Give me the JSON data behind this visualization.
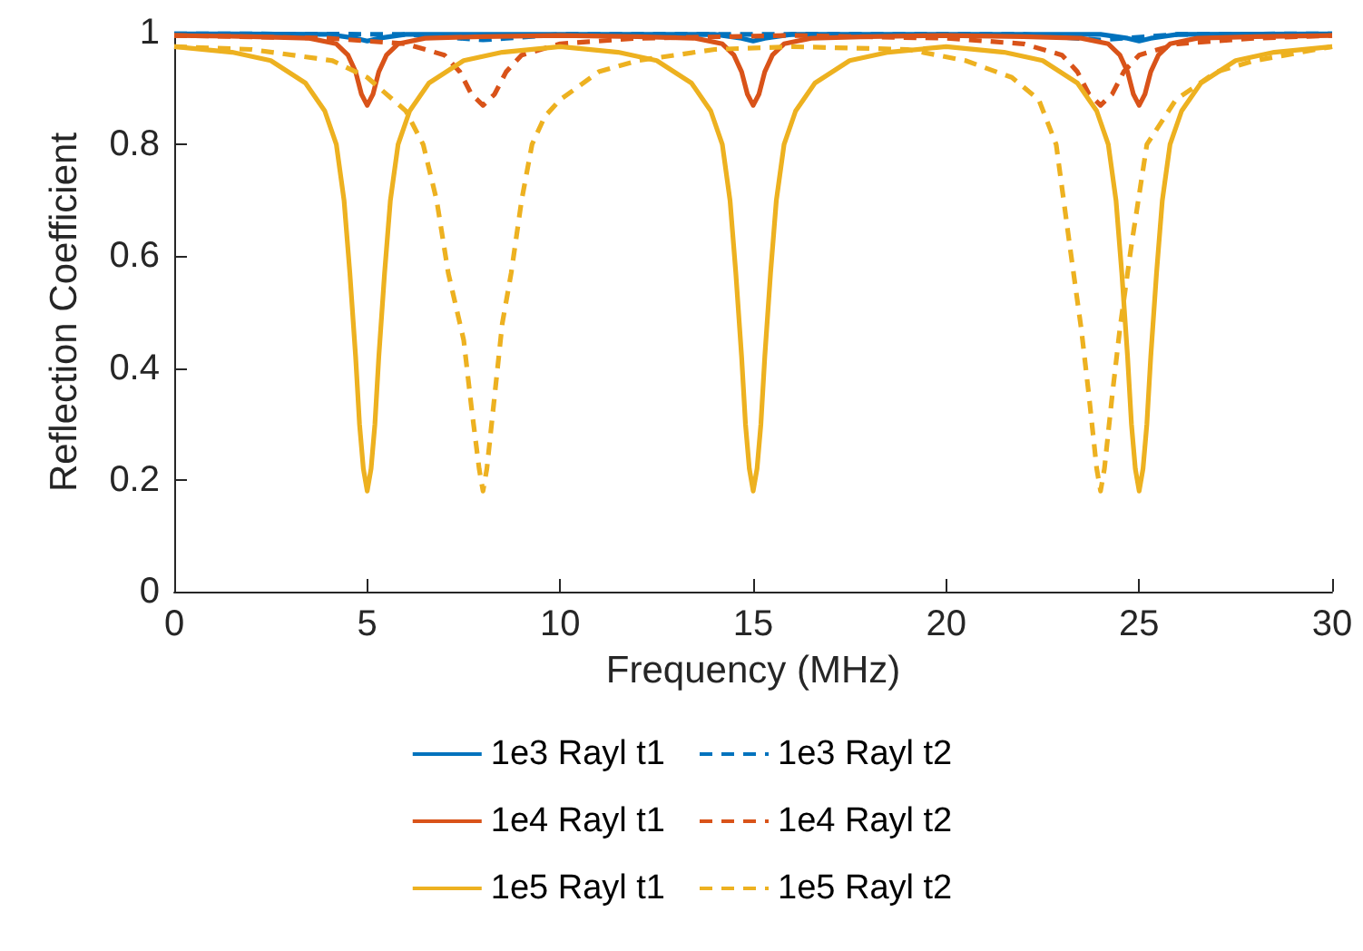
{
  "chart_data": {
    "type": "line",
    "xlabel": "Frequency (MHz)",
    "ylabel": "Reflection Coefficient",
    "xlim": [
      0,
      30
    ],
    "xticks": [
      0,
      5,
      10,
      15,
      20,
      25,
      30
    ],
    "ylim": [
      0,
      1
    ],
    "yticks": [
      0,
      0.2,
      0.4,
      0.6,
      0.8,
      1
    ],
    "grid": false,
    "legend": "bottom",
    "marker": "none",
    "series": [
      {
        "name": "1e3 Rayl t1",
        "color": "#0072bd",
        "line_style": "solid",
        "x": [
          0,
          4,
          4.7,
          5,
          5.3,
          6,
          14,
          14.7,
          15,
          15.3,
          16,
          24,
          24.7,
          25,
          25.3,
          26,
          30
        ],
        "values": [
          0.998,
          0.997,
          0.99,
          0.985,
          0.99,
          0.997,
          0.997,
          0.99,
          0.985,
          0.99,
          0.997,
          0.997,
          0.99,
          0.985,
          0.99,
          0.997,
          0.998
        ]
      },
      {
        "name": "1e3 Rayl t2",
        "color": "#0072bd",
        "line_style": "dashed",
        "x": [
          0,
          6,
          7.4,
          8,
          8.6,
          10,
          22,
          23.4,
          24,
          24.6,
          26,
          30
        ],
        "values": [
          0.998,
          0.997,
          0.99,
          0.987,
          0.99,
          0.997,
          0.997,
          0.99,
          0.987,
          0.99,
          0.997,
          0.998
        ]
      },
      {
        "name": "1e4 Rayl t1",
        "color": "#d95319",
        "line_style": "solid",
        "x": [
          0,
          2,
          3.5,
          4.2,
          4.5,
          4.7,
          4.85,
          5,
          5.15,
          5.3,
          5.5,
          5.8,
          6.5,
          8,
          10,
          12,
          13.5,
          14.2,
          14.5,
          14.7,
          14.85,
          15,
          15.15,
          15.3,
          15.5,
          15.8,
          16.5,
          18,
          20,
          22,
          23.5,
          24.2,
          24.5,
          24.7,
          24.85,
          25,
          25.15,
          25.3,
          25.5,
          25.8,
          26.5,
          28,
          30
        ],
        "values": [
          0.995,
          0.993,
          0.99,
          0.98,
          0.96,
          0.93,
          0.89,
          0.87,
          0.89,
          0.93,
          0.96,
          0.98,
          0.99,
          0.993,
          0.995,
          0.993,
          0.99,
          0.98,
          0.96,
          0.93,
          0.89,
          0.87,
          0.89,
          0.93,
          0.96,
          0.98,
          0.99,
          0.993,
          0.995,
          0.993,
          0.99,
          0.98,
          0.96,
          0.93,
          0.89,
          0.87,
          0.89,
          0.93,
          0.96,
          0.98,
          0.99,
          0.993,
          0.995
        ]
      },
      {
        "name": "1e4 Rayl t2",
        "color": "#d95319",
        "line_style": "dashed",
        "x": [
          0,
          4,
          6,
          7,
          7.4,
          7.7,
          8,
          8.3,
          8.6,
          9,
          10,
          12,
          16,
          20,
          22,
          23,
          23.4,
          23.7,
          24,
          24.3,
          24.6,
          25,
          26,
          28,
          30
        ],
        "values": [
          0.995,
          0.99,
          0.98,
          0.96,
          0.93,
          0.89,
          0.87,
          0.89,
          0.93,
          0.96,
          0.98,
          0.99,
          0.995,
          0.99,
          0.98,
          0.96,
          0.93,
          0.89,
          0.87,
          0.89,
          0.93,
          0.96,
          0.98,
          0.99,
          0.995
        ]
      },
      {
        "name": "1e5 Rayl t1",
        "color": "#edb120",
        "line_style": "solid",
        "x": [
          0,
          1.5,
          2.5,
          3.4,
          3.9,
          4.2,
          4.4,
          4.55,
          4.7,
          4.8,
          4.9,
          5,
          5.1,
          5.2,
          5.3,
          5.45,
          5.6,
          5.8,
          6.1,
          6.6,
          7.5,
          8.5,
          10,
          11.5,
          12.5,
          13.4,
          13.9,
          14.2,
          14.4,
          14.55,
          14.7,
          14.8,
          14.9,
          15,
          15.1,
          15.2,
          15.3,
          15.45,
          15.6,
          15.8,
          16.1,
          16.6,
          17.5,
          18.5,
          20,
          21.5,
          22.5,
          23.4,
          23.9,
          24.2,
          24.4,
          24.55,
          24.7,
          24.8,
          24.9,
          25,
          25.1,
          25.2,
          25.3,
          25.45,
          25.6,
          25.8,
          26.1,
          26.6,
          27.5,
          28.5,
          30
        ],
        "values": [
          0.975,
          0.965,
          0.95,
          0.91,
          0.86,
          0.8,
          0.7,
          0.57,
          0.42,
          0.3,
          0.22,
          0.18,
          0.22,
          0.3,
          0.42,
          0.57,
          0.7,
          0.8,
          0.86,
          0.91,
          0.95,
          0.965,
          0.975,
          0.965,
          0.95,
          0.91,
          0.86,
          0.8,
          0.7,
          0.57,
          0.42,
          0.3,
          0.22,
          0.18,
          0.22,
          0.3,
          0.42,
          0.57,
          0.7,
          0.8,
          0.86,
          0.91,
          0.95,
          0.965,
          0.975,
          0.965,
          0.95,
          0.91,
          0.86,
          0.8,
          0.7,
          0.57,
          0.42,
          0.3,
          0.22,
          0.18,
          0.22,
          0.3,
          0.42,
          0.57,
          0.7,
          0.8,
          0.86,
          0.91,
          0.95,
          0.965,
          0.975
        ]
      },
      {
        "name": "1e5 Rayl t2",
        "color": "#edb120",
        "line_style": "dashed",
        "x": [
          0,
          2,
          4.1,
          5,
          6,
          6.45,
          6.8,
          7.1,
          7.5,
          7.7,
          7.9,
          8,
          8.1,
          8.3,
          8.5,
          8.73,
          9,
          9.27,
          9.6,
          10,
          11,
          12,
          14,
          16,
          19,
          20.5,
          21.7,
          22.4,
          22.85,
          23.2,
          23.5,
          23.7,
          23.9,
          24,
          24.1,
          24.3,
          24.5,
          24.8,
          25.2,
          25.95,
          27,
          28,
          30
        ],
        "values": [
          0.975,
          0.97,
          0.95,
          0.92,
          0.86,
          0.8,
          0.7,
          0.57,
          0.45,
          0.33,
          0.22,
          0.18,
          0.22,
          0.35,
          0.48,
          0.57,
          0.7,
          0.8,
          0.85,
          0.88,
          0.93,
          0.95,
          0.97,
          0.975,
          0.97,
          0.95,
          0.92,
          0.88,
          0.8,
          0.62,
          0.47,
          0.35,
          0.22,
          0.18,
          0.22,
          0.35,
          0.47,
          0.62,
          0.8,
          0.88,
          0.93,
          0.95,
          0.975
        ]
      }
    ]
  }
}
